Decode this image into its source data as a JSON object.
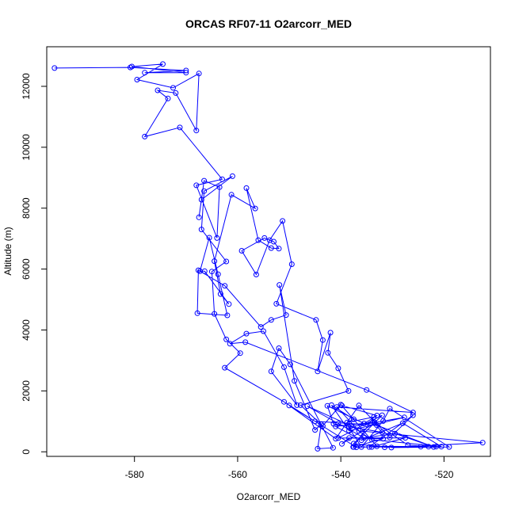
{
  "chart_data": {
    "type": "line",
    "title": "ORCAS RF07-11 O2arcorr_MED",
    "xlabel": "O2arcorr_MED",
    "ylabel": "Altitude (m)",
    "xlim": [
      -597,
      -511
    ],
    "ylim": [
      -150,
      13300
    ],
    "xticks": [
      -580,
      -560,
      -540,
      -520
    ],
    "yticks": [
      0,
      2000,
      4000,
      6000,
      8000,
      10000,
      12000
    ],
    "grid": false,
    "series_color": "#0000FF",
    "marker": "open-circle",
    "series": [
      {
        "values": [
          [
            -595.5,
            12600
          ],
          [
            -580.8,
            12620
          ],
          [
            -570,
            12520
          ],
          [
            -578,
            12450
          ],
          [
            -570,
            12450
          ],
          [
            -580.5,
            12650
          ],
          [
            -574.5,
            12730
          ],
          [
            -579.5,
            12220
          ],
          [
            -572.5,
            11950
          ],
          [
            -567.5,
            12420
          ],
          [
            -568,
            10550
          ],
          [
            -572,
            11780
          ],
          [
            -575.5,
            11870
          ],
          [
            -573.5,
            11600
          ],
          [
            -578,
            10350
          ],
          [
            -571.2,
            10650
          ],
          [
            -563,
            8950
          ],
          [
            -568,
            8750
          ],
          [
            -564,
            7020
          ],
          [
            -563.5,
            8690
          ],
          [
            -566.5,
            8900
          ],
          [
            -567.5,
            7700
          ],
          [
            -567,
            8280
          ],
          [
            -561,
            9050
          ],
          [
            -566.5,
            8560
          ],
          [
            -567,
            7300
          ],
          [
            -562.2,
            6250
          ],
          [
            -565,
            5920
          ],
          [
            -564.5,
            4530
          ],
          [
            -562.2,
            3690
          ],
          [
            -559.5,
            3240
          ],
          [
            -562.5,
            2760
          ],
          [
            -551,
            1640
          ],
          [
            -537,
            150
          ],
          [
            -534.5,
            160
          ],
          [
            -526,
            1200
          ],
          [
            -530.5,
            470
          ],
          [
            -536.5,
            1520
          ],
          [
            -541,
            430
          ],
          [
            -550,
            1520
          ],
          [
            -545,
            1000
          ],
          [
            -533,
            870
          ],
          [
            -522,
            160
          ],
          [
            -529.5,
            600
          ],
          [
            -535.5,
            460
          ],
          [
            -540.5,
            930
          ],
          [
            -546.5,
            1500
          ],
          [
            -538,
            850
          ],
          [
            -534,
            400
          ],
          [
            -520.5,
            170
          ],
          [
            -528,
            940
          ],
          [
            -536,
            380
          ],
          [
            -541,
            830
          ],
          [
            -533.5,
            970
          ],
          [
            -527,
            220
          ],
          [
            -523,
            170
          ],
          [
            -531.5,
            150
          ],
          [
            -537.5,
            270
          ],
          [
            -532,
            1200
          ],
          [
            -540.5,
            450
          ],
          [
            -527.5,
            460
          ],
          [
            -534,
            160
          ],
          [
            -521.5,
            170
          ],
          [
            -537.5,
            160
          ],
          [
            -524.5,
            170
          ],
          [
            -533,
            180
          ],
          [
            -540,
            1550
          ],
          [
            -543.5,
            850
          ],
          [
            -547.8,
            1530
          ],
          [
            -538.5,
            2000
          ],
          [
            -540.5,
            2740
          ],
          [
            -542.5,
            3250
          ],
          [
            -542,
            3910
          ],
          [
            -544.5,
            2640
          ],
          [
            -543.5,
            3670
          ],
          [
            -544.8,
            4330
          ],
          [
            -552.5,
            4860
          ],
          [
            -549.5,
            6160
          ],
          [
            -551.3,
            7580
          ],
          [
            -553.8,
            6950
          ],
          [
            -556.4,
            5820
          ],
          [
            -559.2,
            6600
          ],
          [
            -554.8,
            7020
          ],
          [
            -553,
            6900
          ],
          [
            -552,
            6670
          ],
          [
            -553.5,
            6690
          ],
          [
            -556,
            6950
          ],
          [
            -558.3,
            8660
          ],
          [
            -556.6,
            7990
          ],
          [
            -561.2,
            8440
          ],
          [
            -564.5,
            6260
          ],
          [
            -563.3,
            5180
          ],
          [
            -561.7,
            4850
          ],
          [
            -566.4,
            5930
          ],
          [
            -567.3,
            5930
          ],
          [
            -565.5,
            7030
          ],
          [
            -563.8,
            5830
          ],
          [
            -562,
            4480
          ],
          [
            -567.8,
            4550
          ],
          [
            -567.6,
            5960
          ],
          [
            -562.5,
            5450
          ],
          [
            -555.5,
            4100
          ],
          [
            -553.5,
            4330
          ],
          [
            -550.6,
            4490
          ],
          [
            -551.9,
            5480
          ],
          [
            -549,
            2330
          ],
          [
            -545,
            720
          ],
          [
            -543.8,
            900
          ],
          [
            -544.5,
            100
          ],
          [
            -541.5,
            130
          ],
          [
            -549.8,
            2870
          ],
          [
            -552,
            3400
          ],
          [
            -553.5,
            2640
          ],
          [
            -548.5,
            1530
          ],
          [
            -551,
            2780
          ],
          [
            -555,
            3960
          ],
          [
            -558.3,
            3880
          ],
          [
            -561.5,
            3550
          ],
          [
            -558.5,
            3600
          ],
          [
            -535,
            2030
          ],
          [
            -526,
            1290
          ],
          [
            -540.8,
            1470
          ],
          [
            -536.5,
            690
          ],
          [
            -512.5,
            300
          ],
          [
            -530.2,
            140
          ],
          [
            -519,
            160
          ],
          [
            -530.5,
            1420
          ],
          [
            -531.8,
            1010
          ],
          [
            -536,
            160
          ],
          [
            -538.5,
            810
          ],
          [
            -527.7,
            1130
          ],
          [
            -538.4,
            690
          ],
          [
            -541.8,
            1530
          ],
          [
            -537.5,
            1070
          ],
          [
            -538.8,
            960
          ],
          [
            -533.6,
            1140
          ],
          [
            -537.6,
            160
          ],
          [
            -531.8,
            430
          ],
          [
            -538.4,
            450
          ],
          [
            -539.8,
            260
          ],
          [
            -533.5,
            940
          ],
          [
            -532,
            640
          ],
          [
            -541.4,
            920
          ],
          [
            -542.6,
            1510
          ],
          [
            -535.5,
            930
          ],
          [
            -533,
            1190
          ],
          [
            -539.8,
            1520
          ]
        ]
      }
    ]
  }
}
